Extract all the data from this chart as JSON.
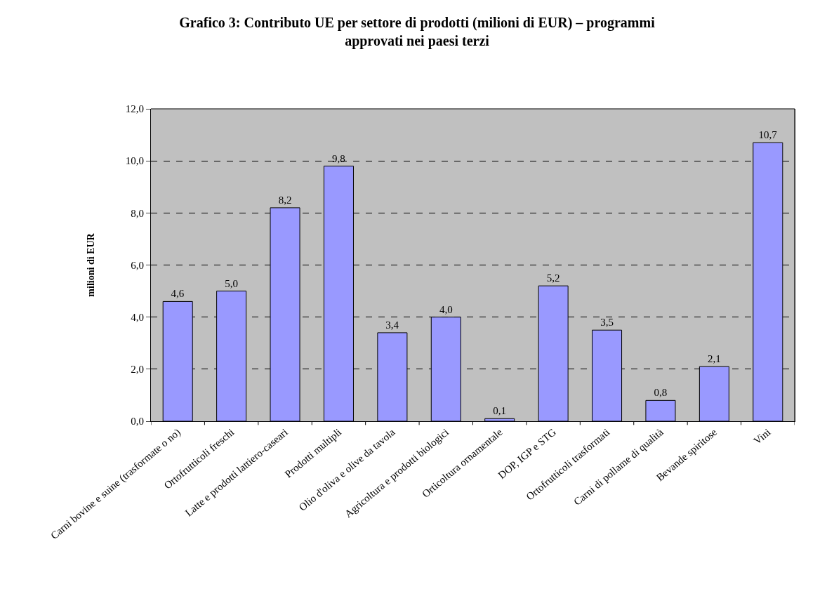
{
  "chart_data": {
    "type": "bar",
    "title": "Grafico 3: Contributo UE per settore di prodotti (milioni di EUR) – programmi\napprovati nei paesi terzi",
    "ylabel": "milioni di EUR",
    "categories": [
      "Carni bovine e suine (trasformate o no)",
      "Ortofrutticoli freschi",
      "Latte e prodotti lattiero-caseari",
      "Prodotti multipli",
      "Olio d'oliva e olive da tavola",
      "Agricoltura e prodotti biologici",
      "Orticoltura ornamentale",
      "DOP, IGP e STG",
      "Ortofrutticoli trasformati",
      "Carni di pollame di qualità",
      "Bevande spiritose",
      "Vini"
    ],
    "values": [
      4.6,
      5.0,
      8.2,
      9.8,
      3.4,
      4.0,
      0.1,
      5.2,
      3.5,
      0.8,
      2.1,
      10.7
    ],
    "value_labels": [
      "4,6",
      "5,0",
      "8,2",
      "9,8",
      "3,4",
      "4,0",
      "0,1",
      "5,2",
      "3,5",
      "0,8",
      "2,1",
      "10,7"
    ],
    "color": "#9999ff",
    "ylim": [
      0,
      12
    ],
    "yticks": [
      {
        "value": 0,
        "label": "0,0"
      },
      {
        "value": 2,
        "label": "2,0"
      },
      {
        "value": 4,
        "label": "4,0"
      },
      {
        "value": 6,
        "label": "6,0"
      },
      {
        "value": 8,
        "label": "8,0"
      },
      {
        "value": 10,
        "label": "10,0"
      },
      {
        "value": 12,
        "label": "12,0"
      }
    ],
    "grid": "y"
  }
}
